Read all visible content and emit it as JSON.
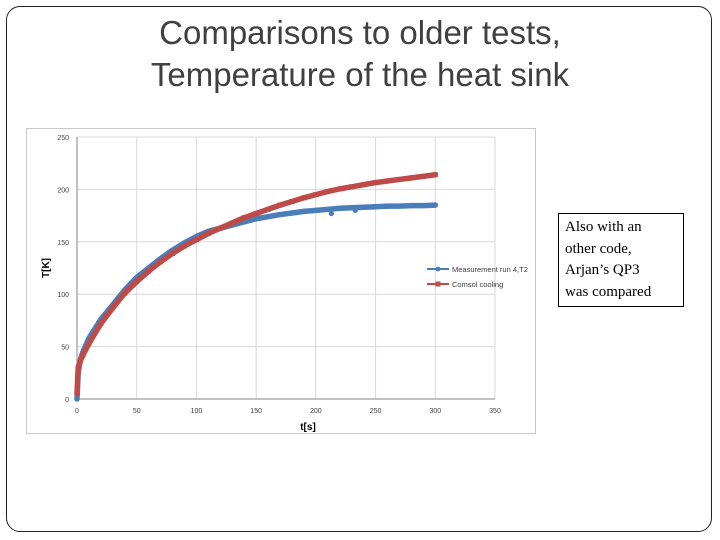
{
  "slide": {
    "title_lines": [
      "Comparisons to older tests,",
      "Temperature of the heat sink"
    ],
    "note_lines": [
      "Also with an",
      "other code,",
      "Arjan’s QP3",
      "was compared"
    ]
  },
  "chart_data": {
    "type": "line",
    "xlabel": "t[s]",
    "ylabel": "T[K]",
    "xlim": [
      0,
      350
    ],
    "ylim": [
      0,
      250
    ],
    "xticks": [
      0,
      50,
      100,
      150,
      200,
      250,
      300,
      350
    ],
    "yticks": [
      0,
      50,
      100,
      150,
      200,
      250
    ],
    "grid": true,
    "legend_position": "right",
    "series": [
      {
        "name": "Measurement run 4,T2",
        "color": "#4a7ebb",
        "x": [
          0,
          1,
          2,
          3,
          5,
          10,
          20,
          30,
          40,
          50,
          60,
          70,
          80,
          90,
          100,
          110,
          120,
          130,
          140,
          150,
          160,
          170,
          180,
          190,
          200,
          210,
          220,
          230,
          240,
          250,
          260,
          270,
          280,
          290,
          300
        ],
        "y": [
          0,
          25,
          32,
          38,
          45,
          58,
          76,
          90,
          104,
          116,
          125,
          134,
          142,
          149,
          155,
          160,
          163,
          166,
          169,
          172,
          174,
          176,
          177.5,
          179,
          180,
          181,
          182,
          182.5,
          183,
          183.5,
          184,
          184,
          184.5,
          184.5,
          185
        ],
        "outliers_x": [
          213,
          233
        ],
        "outliers_y": [
          177,
          180
        ]
      },
      {
        "name": "Comsol cooling",
        "color": "#be4b48",
        "x": [
          0,
          1,
          2,
          3,
          5,
          10,
          20,
          30,
          40,
          50,
          60,
          70,
          80,
          90,
          100,
          110,
          120,
          130,
          140,
          150,
          160,
          170,
          180,
          190,
          200,
          210,
          220,
          230,
          240,
          250,
          260,
          270,
          280,
          290,
          300
        ],
        "y": [
          5,
          30,
          34,
          37,
          42,
          53,
          72,
          87,
          101,
          112,
          122,
          131,
          139,
          146,
          152,
          158,
          163,
          168,
          173,
          177,
          181,
          185,
          188.5,
          192,
          195,
          198,
          200.5,
          202.5,
          204.5,
          206.5,
          208,
          209.5,
          211,
          212.5,
          214
        ]
      }
    ]
  }
}
